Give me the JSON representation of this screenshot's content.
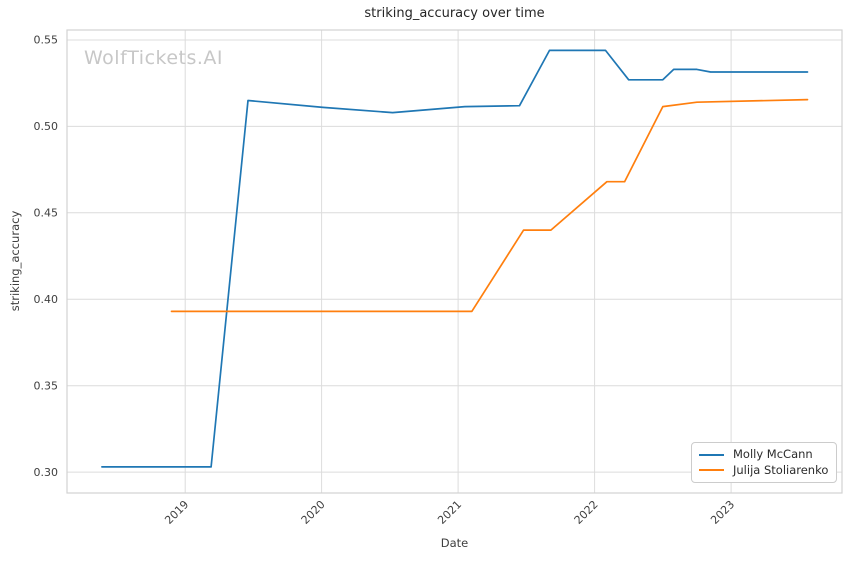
{
  "title": "striking_accuracy over time",
  "watermark": "WolfTickets.AI",
  "xlabel": "Date",
  "ylabel": "striking_accuracy",
  "colors": {
    "grid": "#dcdcdc",
    "spine": "#d2d2d2",
    "tick_text": "#3f3f3f",
    "title_text": "#262626",
    "watermark_text": "#c7c7c7",
    "series_blue": "#1f77b4",
    "series_orange": "#ff7f0e",
    "legend_border": "#cccccc",
    "background": "#ffffff"
  },
  "legend": {
    "position": "lower right",
    "items": [
      {
        "label": "Molly McCann",
        "color": "#1f77b4"
      },
      {
        "label": "Julija Stoliarenko",
        "color": "#ff7f0e"
      }
    ]
  },
  "chart_data": {
    "type": "line",
    "title": "striking_accuracy over time",
    "xlabel": "Date",
    "ylabel": "striking_accuracy",
    "grid": true,
    "legend_position": "lower right",
    "xlim": [
      2018.134,
      2023.813
    ],
    "ylim": [
      0.2879,
      0.5558
    ],
    "x_ticks": [
      2019,
      2020,
      2021,
      2022,
      2023
    ],
    "y_ticks": [
      0.3,
      0.35,
      0.4,
      0.45,
      0.5,
      0.55
    ],
    "x_tick_rotation": 45,
    "series": [
      {
        "name": "Molly McCann",
        "color": "#1f77b4",
        "x": [
          2018.39,
          2019.19,
          2019.46,
          2020.01,
          2020.52,
          2021.05,
          2021.45,
          2021.67,
          2022.08,
          2022.25,
          2022.5,
          2022.58,
          2022.75,
          2022.85,
          2023.56
        ],
        "y": [
          0.303,
          0.303,
          0.515,
          0.511,
          0.508,
          0.5115,
          0.512,
          0.544,
          0.544,
          0.527,
          0.527,
          0.533,
          0.533,
          0.5315,
          0.5315
        ]
      },
      {
        "name": "Julija Stoliarenko",
        "color": "#ff7f0e",
        "x": [
          2018.9,
          2021.1,
          2021.48,
          2021.68,
          2022.09,
          2022.22,
          2022.5,
          2022.75,
          2023.56
        ],
        "y": [
          0.393,
          0.393,
          0.44,
          0.44,
          0.468,
          0.468,
          0.5115,
          0.514,
          0.5155
        ]
      }
    ]
  }
}
